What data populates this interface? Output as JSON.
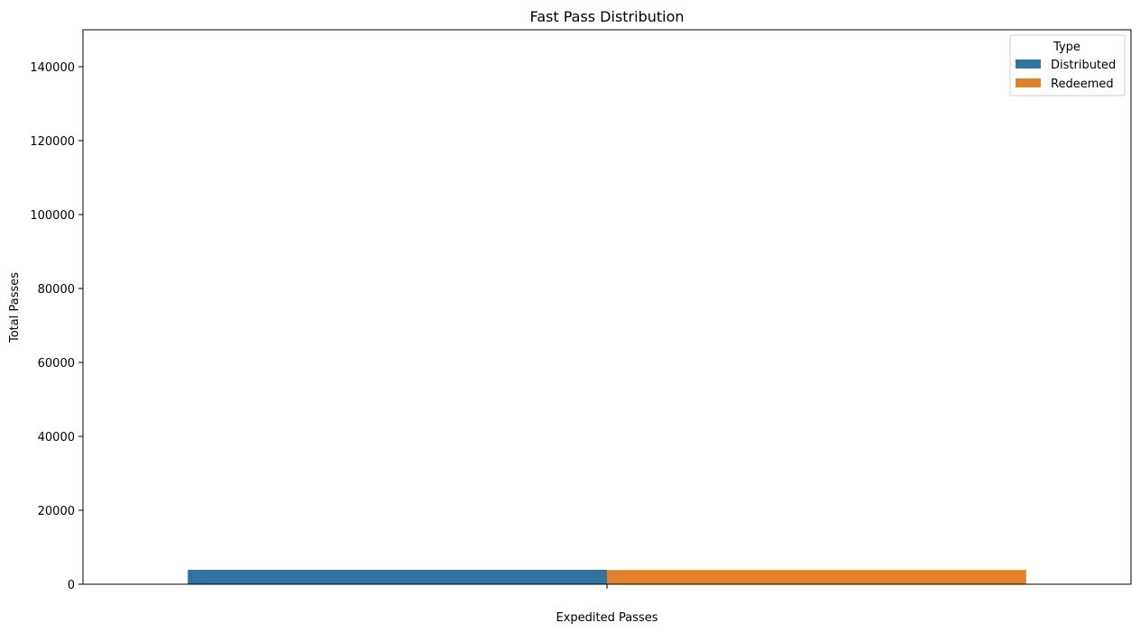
{
  "chart_data": {
    "type": "bar",
    "title": "Fast Pass Distribution",
    "xlabel": "Expedited Passes",
    "ylabel": "Total Passes",
    "categories": [
      ""
    ],
    "series": [
      {
        "name": "Distributed",
        "values": [
          3900
        ],
        "color": "#3274a1"
      },
      {
        "name": "Redeemed",
        "values": [
          3850
        ],
        "color": "#e1812c"
      }
    ],
    "ylim": [
      0,
      150000
    ],
    "yticks": [
      0,
      20000,
      40000,
      60000,
      80000,
      100000,
      120000,
      140000
    ],
    "grid": false,
    "legend": {
      "title": "Type",
      "placement": "top-right"
    }
  }
}
